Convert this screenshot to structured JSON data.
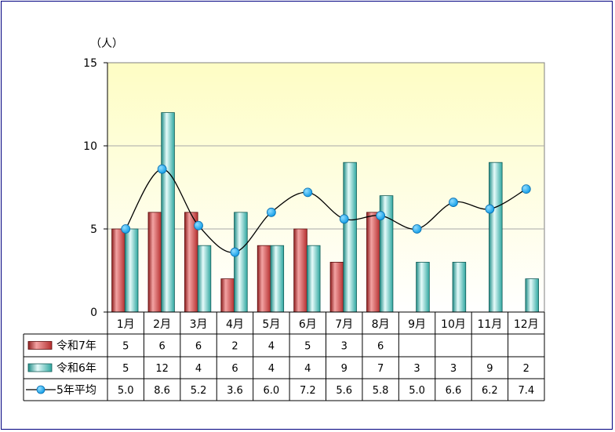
{
  "chart_data": {
    "type": "bar",
    "unit_label": "（人）",
    "categories": [
      "1月",
      "2月",
      "3月",
      "4月",
      "5月",
      "6月",
      "7月",
      "8月",
      "9月",
      "10月",
      "11月",
      "12月"
    ],
    "ylim": [
      0,
      15
    ],
    "yticks": [
      0,
      5,
      10,
      15
    ],
    "grid": true,
    "legend": "data-table",
    "series": [
      {
        "name": "令和7年",
        "kind": "bar",
        "color": "#c23b3b",
        "values": [
          5,
          6,
          6,
          2,
          4,
          5,
          3,
          6,
          null,
          null,
          null,
          null
        ],
        "labels": [
          "5",
          "6",
          "6",
          "2",
          "4",
          "5",
          "3",
          "6",
          "",
          "",
          "",
          ""
        ]
      },
      {
        "name": "令和6年",
        "kind": "bar",
        "color": "#3fb7b0",
        "values": [
          5,
          12,
          4,
          6,
          4,
          4,
          9,
          7,
          3,
          3,
          9,
          2
        ],
        "labels": [
          "5",
          "12",
          "4",
          "6",
          "4",
          "4",
          "9",
          "7",
          "3",
          "3",
          "9",
          "2"
        ]
      },
      {
        "name": "5年平均",
        "kind": "line",
        "color": "#000000",
        "marker_color": "#19a8f0",
        "values": [
          5.0,
          8.6,
          5.2,
          3.6,
          6.0,
          7.2,
          5.6,
          5.8,
          5.0,
          6.6,
          6.2,
          7.4
        ],
        "labels": [
          "5.0",
          "8.6",
          "5.2",
          "3.6",
          "6.0",
          "7.2",
          "5.6",
          "5.8",
          "5.0",
          "6.6",
          "6.2",
          "7.4"
        ]
      }
    ]
  }
}
